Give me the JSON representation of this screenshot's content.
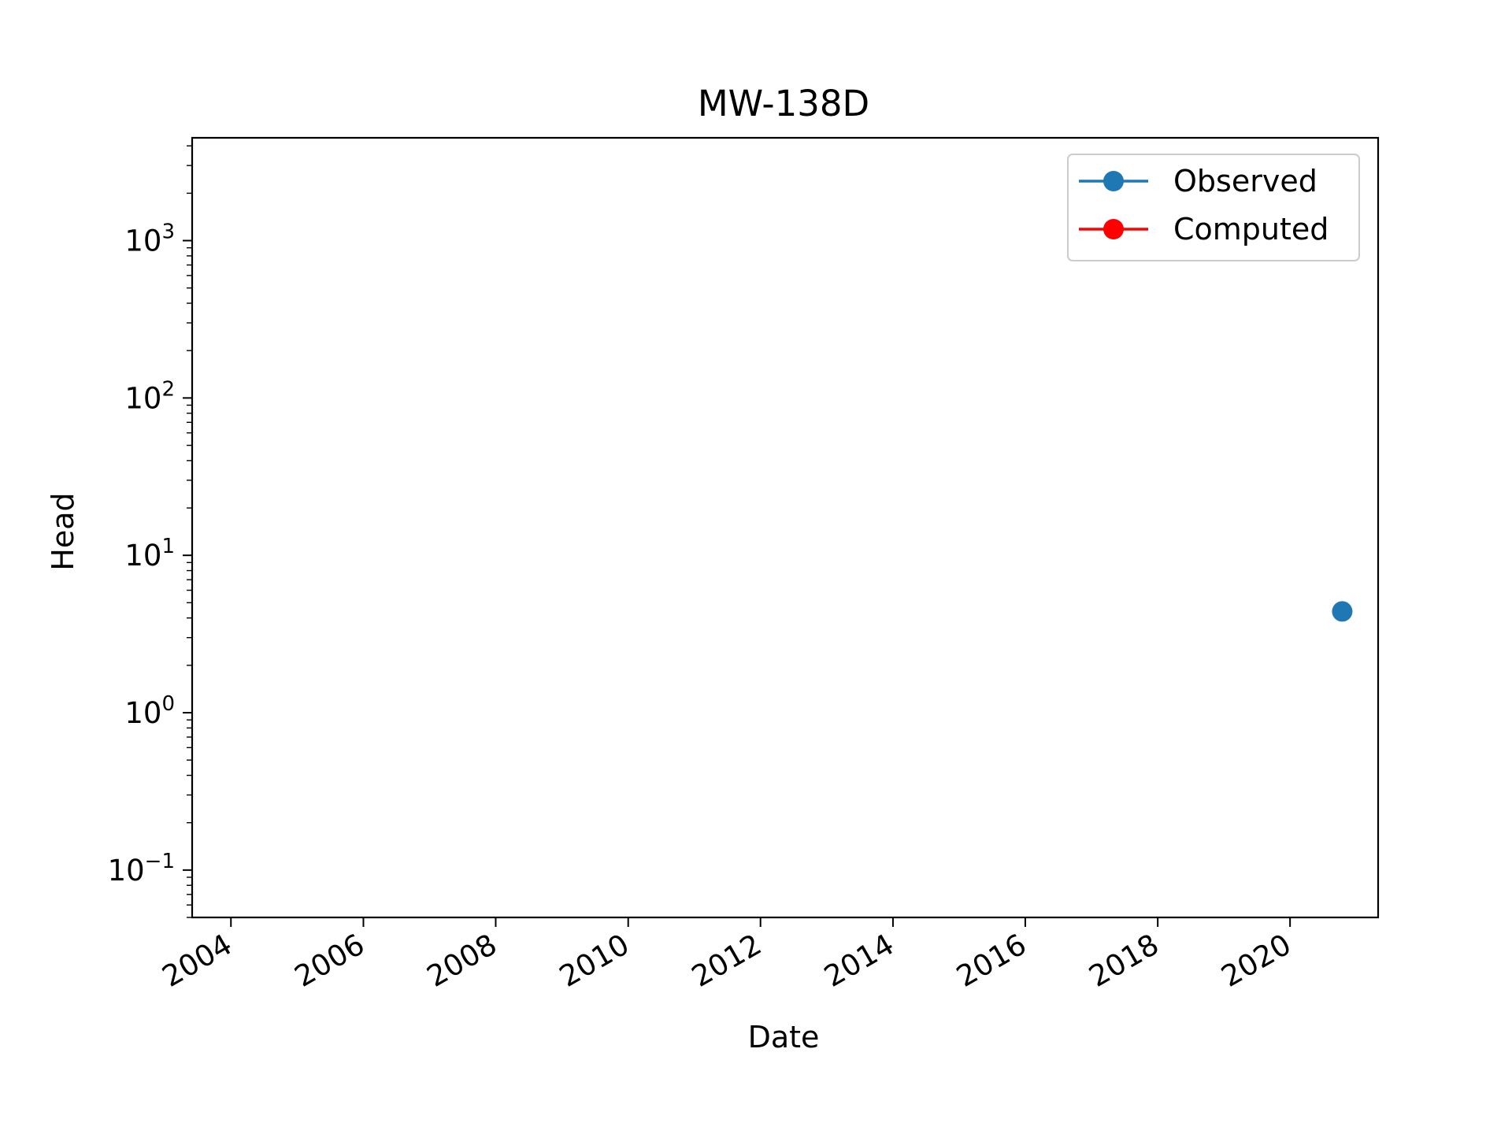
{
  "chart_data": {
    "type": "line",
    "title": "MW-138D",
    "xlabel": "Date",
    "ylabel": "Head",
    "x_axis_type": "date",
    "xlim": [
      "2003-06-01",
      "2021-05-01"
    ],
    "x_ticks": [
      {
        "date": "2004-01-01",
        "label": "2004"
      },
      {
        "date": "2006-01-01",
        "label": "2006"
      },
      {
        "date": "2008-01-01",
        "label": "2008"
      },
      {
        "date": "2010-01-01",
        "label": "2010"
      },
      {
        "date": "2012-01-01",
        "label": "2012"
      },
      {
        "date": "2014-01-01",
        "label": "2014"
      },
      {
        "date": "2016-01-01",
        "label": "2016"
      },
      {
        "date": "2018-01-01",
        "label": "2018"
      },
      {
        "date": "2020-01-01",
        "label": "2020"
      }
    ],
    "y_scale": "log",
    "ylim": [
      0.05,
      4500
    ],
    "y_ticks": [
      {
        "value": 0.1,
        "base": "10",
        "exp": "−1"
      },
      {
        "value": 1,
        "base": "10",
        "exp": "0"
      },
      {
        "value": 10,
        "base": "10",
        "exp": "1"
      },
      {
        "value": 100,
        "base": "10",
        "exp": "2"
      },
      {
        "value": 1000,
        "base": "10",
        "exp": "3"
      }
    ],
    "grid": false,
    "legend_position": "top-right",
    "series": [
      {
        "name": "Observed",
        "color": "#1f77b4",
        "marker": "circle",
        "points": [
          {
            "x": "2020-10-15",
            "y": 4.4
          }
        ]
      },
      {
        "name": "Computed",
        "color": "#ff0000",
        "marker": "circle",
        "points": []
      }
    ]
  }
}
